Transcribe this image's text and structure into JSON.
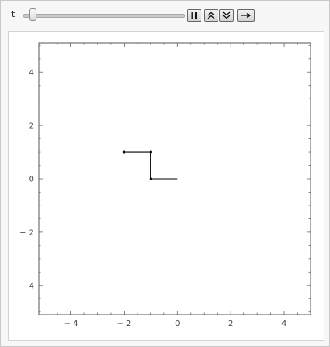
{
  "controls": {
    "parameter_label": "t",
    "slider": {
      "value": 0.03,
      "range": [
        0,
        1
      ]
    },
    "buttons": [
      {
        "name": "pause-button",
        "icon": "pause-icon"
      },
      {
        "name": "faster-button",
        "icon": "double-chevron-up-icon"
      },
      {
        "name": "slower-button",
        "icon": "double-chevron-down-icon"
      },
      {
        "name": "direction-button",
        "icon": "arrow-right-icon"
      }
    ]
  },
  "chart_data": {
    "type": "line",
    "title": "",
    "xlabel": "",
    "ylabel": "",
    "xlim": [
      -5.2,
      5.0
    ],
    "ylim": [
      -5.1,
      5.1
    ],
    "xticks": [
      -4,
      -2,
      0,
      2,
      4
    ],
    "yticks": [
      -4,
      -2,
      0,
      2,
      4
    ],
    "xtick_labels": [
      "− 4",
      "− 2",
      "0",
      "2",
      "4"
    ],
    "ytick_labels": [
      "− 4",
      "− 2",
      "0",
      "2",
      "4"
    ],
    "grid": false,
    "series": [
      {
        "x": [
          0,
          -1,
          -1,
          -2
        ],
        "y": [
          0,
          0,
          1,
          1
        ],
        "points": [
          [
            -1,
            0
          ],
          [
            -1,
            1
          ],
          [
            -2,
            1
          ]
        ]
      }
    ],
    "line_color": "#000000"
  }
}
